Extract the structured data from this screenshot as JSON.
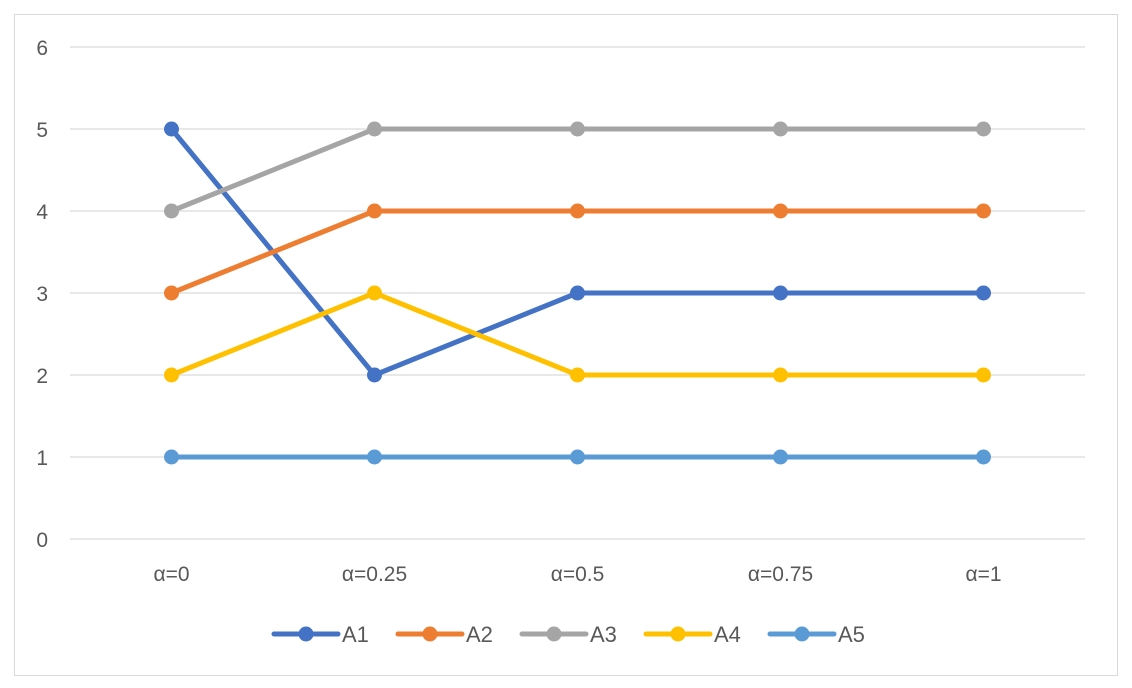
{
  "chart_data": {
    "type": "line",
    "categories": [
      "α=0",
      "α=0.25",
      "α=0.5",
      "α=0.75",
      "α=1"
    ],
    "series": [
      {
        "name": "A1",
        "color": "#4472C4",
        "values": [
          5,
          2,
          3,
          3,
          3
        ]
      },
      {
        "name": "A2",
        "color": "#ED7D31",
        "values": [
          3,
          4,
          4,
          4,
          4
        ]
      },
      {
        "name": "A3",
        "color": "#A5A5A5",
        "values": [
          4,
          5,
          5,
          5,
          5
        ]
      },
      {
        "name": "A4",
        "color": "#FFC000",
        "values": [
          2,
          3,
          2,
          2,
          2
        ]
      },
      {
        "name": "A5",
        "color": "#5B9BD5",
        "values": [
          1,
          1,
          1,
          1,
          1
        ]
      }
    ],
    "title": "",
    "xlabel": "",
    "ylabel": "",
    "ylim": [
      0,
      6
    ],
    "yticks": [
      "0",
      "1",
      "2",
      "3",
      "4",
      "5",
      "6"
    ],
    "grid": true,
    "gridline_color": "#d9d9d9",
    "legend_position": "bottom"
  }
}
